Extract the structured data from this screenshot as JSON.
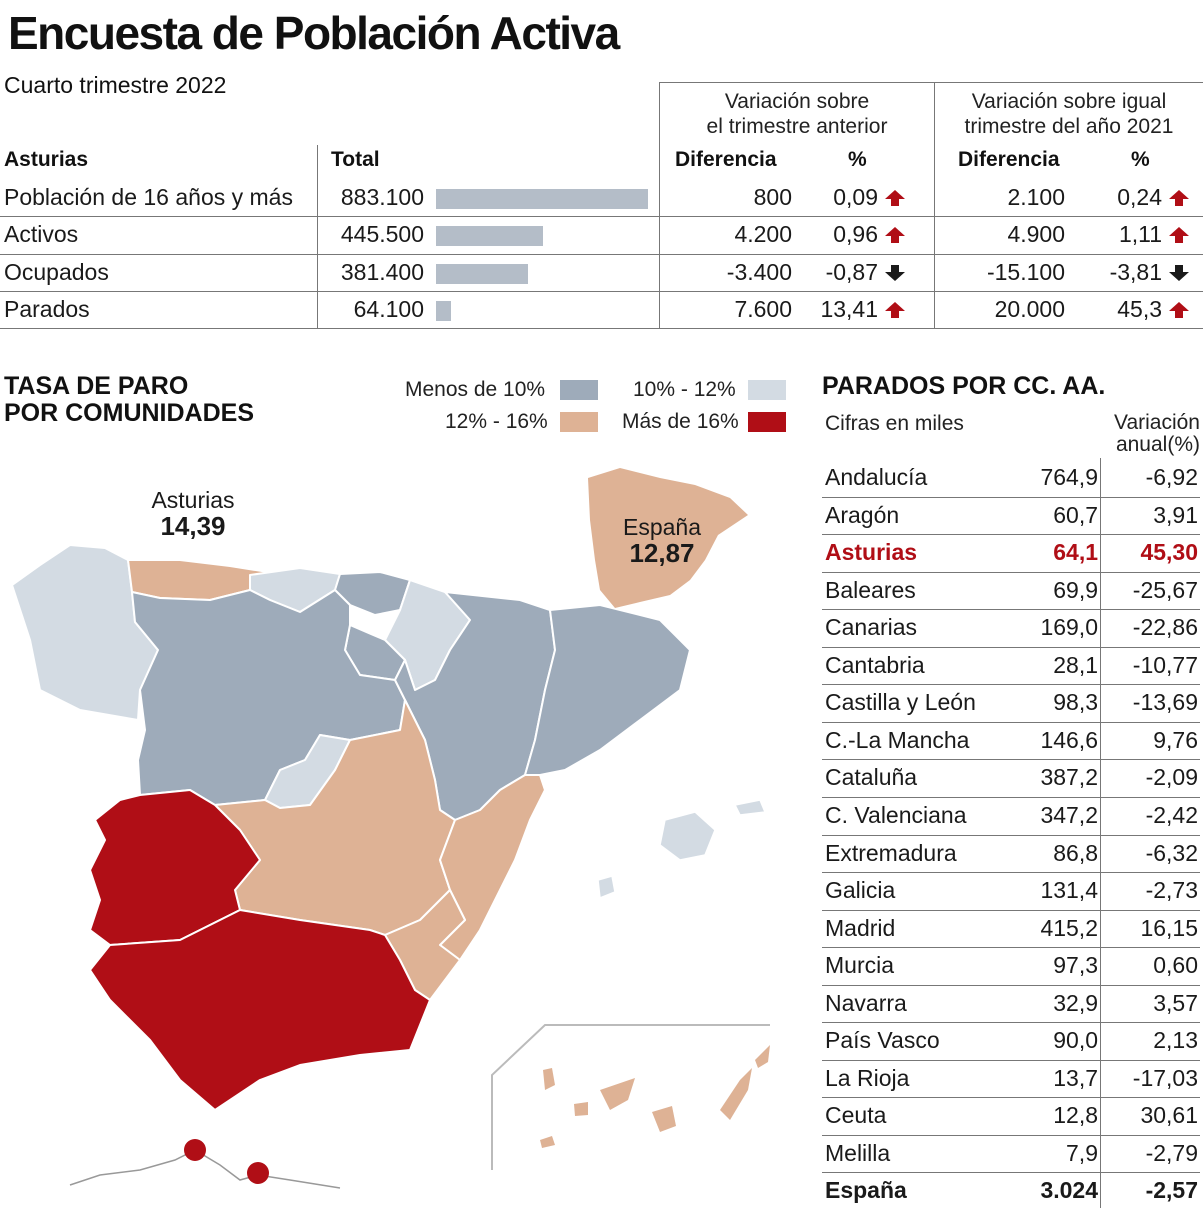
{
  "header": {
    "title": "Encuesta de Población Activa",
    "subtitle": "Cuarto trimestre 2022"
  },
  "colors": {
    "red": "#b00e16",
    "salmon": "#deb295",
    "slate": "#9eabba",
    "light": "#d3dbe3",
    "bar": "#b4bdc8"
  },
  "table": {
    "region_label": "Asturias",
    "total_label": "Total",
    "group1": "Variación sobre\nel trimestre anterior",
    "group2": "Variación sobre igual\ntrimestre del año 2021",
    "dif_label": "Diferencia",
    "pct_label": "%",
    "rows": [
      {
        "label": "Población de 16 años y más",
        "total": "883.100",
        "total_num": 883100,
        "dif1": "800",
        "pct1": "0,09",
        "dir1": "up",
        "dif2": "2.100",
        "pct2": "0,24",
        "dir2": "up"
      },
      {
        "label": "Activos",
        "total": "445.500",
        "total_num": 445500,
        "dif1": "4.200",
        "pct1": "0,96",
        "dir1": "up",
        "dif2": "4.900",
        "pct2": "1,11",
        "dir2": "up"
      },
      {
        "label": "Ocupados",
        "total": "381.400",
        "total_num": 381400,
        "dif1": "-3.400",
        "pct1": "-0,87",
        "dir1": "down",
        "dif2": "-15.100",
        "pct2": "-3,81",
        "dir2": "down"
      },
      {
        "label": "Parados",
        "total": "64.100",
        "total_num": 64100,
        "dif1": "7.600",
        "pct1": "13,41",
        "dir1": "up",
        "dif2": "20.000",
        "pct2": "45,3",
        "dir2": "up"
      }
    ]
  },
  "map": {
    "title_line1": "TASA DE PARO",
    "title_line2": "POR COMUNIDADES",
    "legend": [
      {
        "label": "Menos de 10%",
        "color": "#9eabba"
      },
      {
        "label": "10% - 12%",
        "color": "#d3dbe3"
      },
      {
        "label": "12% - 16%",
        "color": "#deb295"
      },
      {
        "label": "Más de 16%",
        "color": "#b00e16"
      }
    ],
    "asturias_label": "Asturias",
    "asturias_value": "14,39",
    "spain_label": "España",
    "spain_value": "12,87"
  },
  "chart_data": {
    "type": "table",
    "title": "PARADOS POR CC. AA.",
    "subtitle": "Cifras en miles",
    "col_header": "Variación\nanual(%)",
    "rows": [
      {
        "name": "Andalucía",
        "value": "764,9",
        "var": "-6,92"
      },
      {
        "name": "Aragón",
        "value": "60,7",
        "var": "3,91"
      },
      {
        "name": "Asturias",
        "value": "64,1",
        "var": "45,30",
        "highlight": true
      },
      {
        "name": "Baleares",
        "value": "69,9",
        "var": "-25,67"
      },
      {
        "name": "Canarias",
        "value": "169,0",
        "var": "-22,86"
      },
      {
        "name": "Cantabria",
        "value": "28,1",
        "var": "-10,77"
      },
      {
        "name": "Castilla y León",
        "value": "98,3",
        "var": "-13,69"
      },
      {
        "name": "C.-La Mancha",
        "value": "146,6",
        "var": "9,76"
      },
      {
        "name": "Cataluña",
        "value": "387,2",
        "var": "-2,09"
      },
      {
        "name": "C. Valenciana",
        "value": "347,2",
        "var": "-2,42"
      },
      {
        "name": "Extremadura",
        "value": "86,8",
        "var": "-6,32"
      },
      {
        "name": "Galicia",
        "value": "131,4",
        "var": "-2,73"
      },
      {
        "name": "Madrid",
        "value": "415,2",
        "var": "16,15"
      },
      {
        "name": "Murcia",
        "value": "97,3",
        "var": "0,60"
      },
      {
        "name": "Navarra",
        "value": "32,9",
        "var": "3,57"
      },
      {
        "name": "País Vasco",
        "value": "90,0",
        "var": "2,13"
      },
      {
        "name": "La Rioja",
        "value": "13,7",
        "var": "-17,03"
      },
      {
        "name": "Ceuta",
        "value": "12,8",
        "var": "30,61"
      },
      {
        "name": "Melilla",
        "value": "7,9",
        "var": "-2,79"
      },
      {
        "name": "España",
        "value": "3.024",
        "var": "-2,57",
        "total": true
      }
    ]
  }
}
